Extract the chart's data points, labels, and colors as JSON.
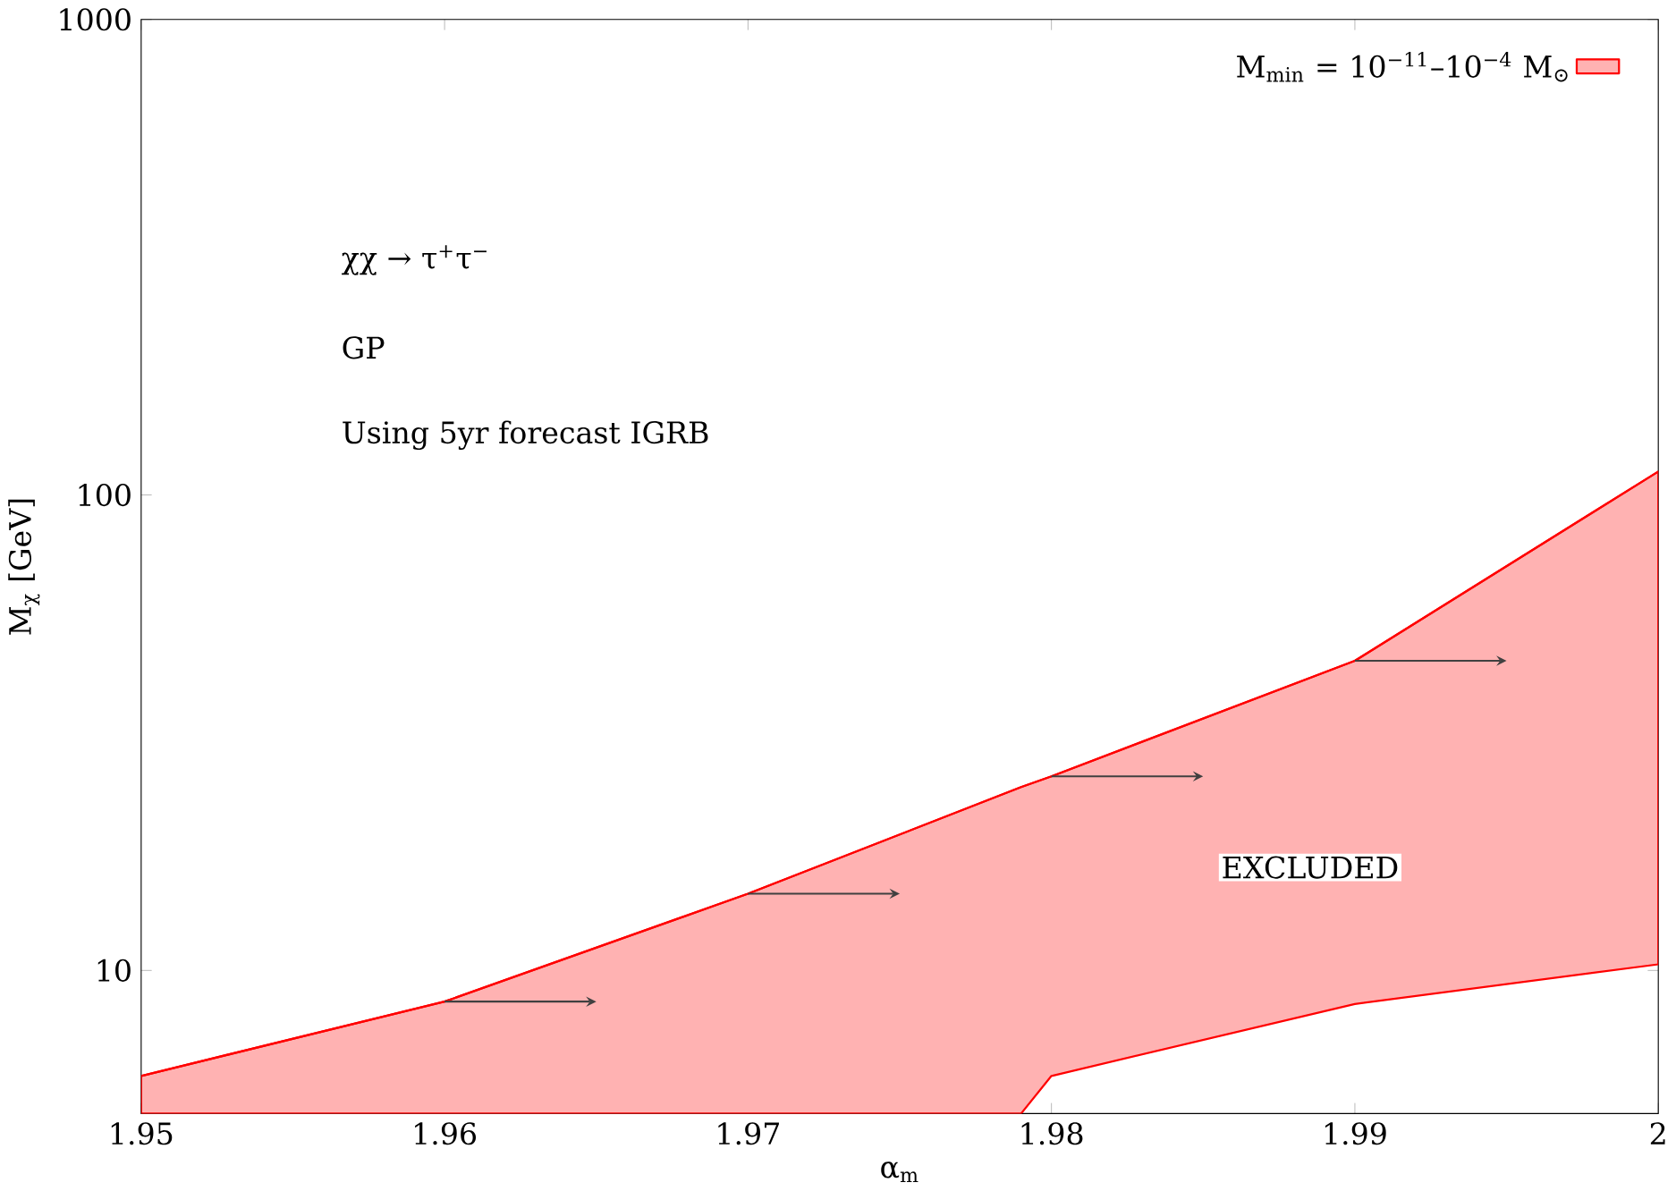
{
  "chart_data": {
    "type": "line",
    "xlabel": "α$_{m}$",
    "ylabel": "M$_{χ}$ [GeV]",
    "x": [
      1.95,
      1.96,
      1.97,
      1.979,
      1.98,
      1.99,
      2.0
    ],
    "series": [
      {
        "name": "M$_{min}$ = 10$^{−11}$–10$^{−4}$ M$_{⊙}$",
        "color": "#ff0000",
        "values": [
          6.0,
          8.6,
          14.5,
          24.3,
          25.6,
          44.8,
          112
        ],
        "lower": [
          5,
          5,
          5,
          5,
          6.0,
          8.5,
          10.3
        ],
        "upper": [
          6.0,
          8.6,
          14.5,
          24.3,
          25.6,
          44.8,
          112
        ]
      }
    ],
    "annotations": [
      "χχ → τ$^{+}$τ$^{−}$",
      "GP",
      "Using 5yr forecast IGRB",
      "EXCLUDED"
    ],
    "log": "y",
    "xlim": [
      1.95,
      2.0
    ],
    "ylim": [
      5,
      1000
    ],
    "xticks": [
      1.95,
      1.96,
      1.97,
      1.98,
      1.99,
      2
    ],
    "yticks": [
      10,
      100,
      1000
    ],
    "legend": "top right",
    "grid": false
  }
}
